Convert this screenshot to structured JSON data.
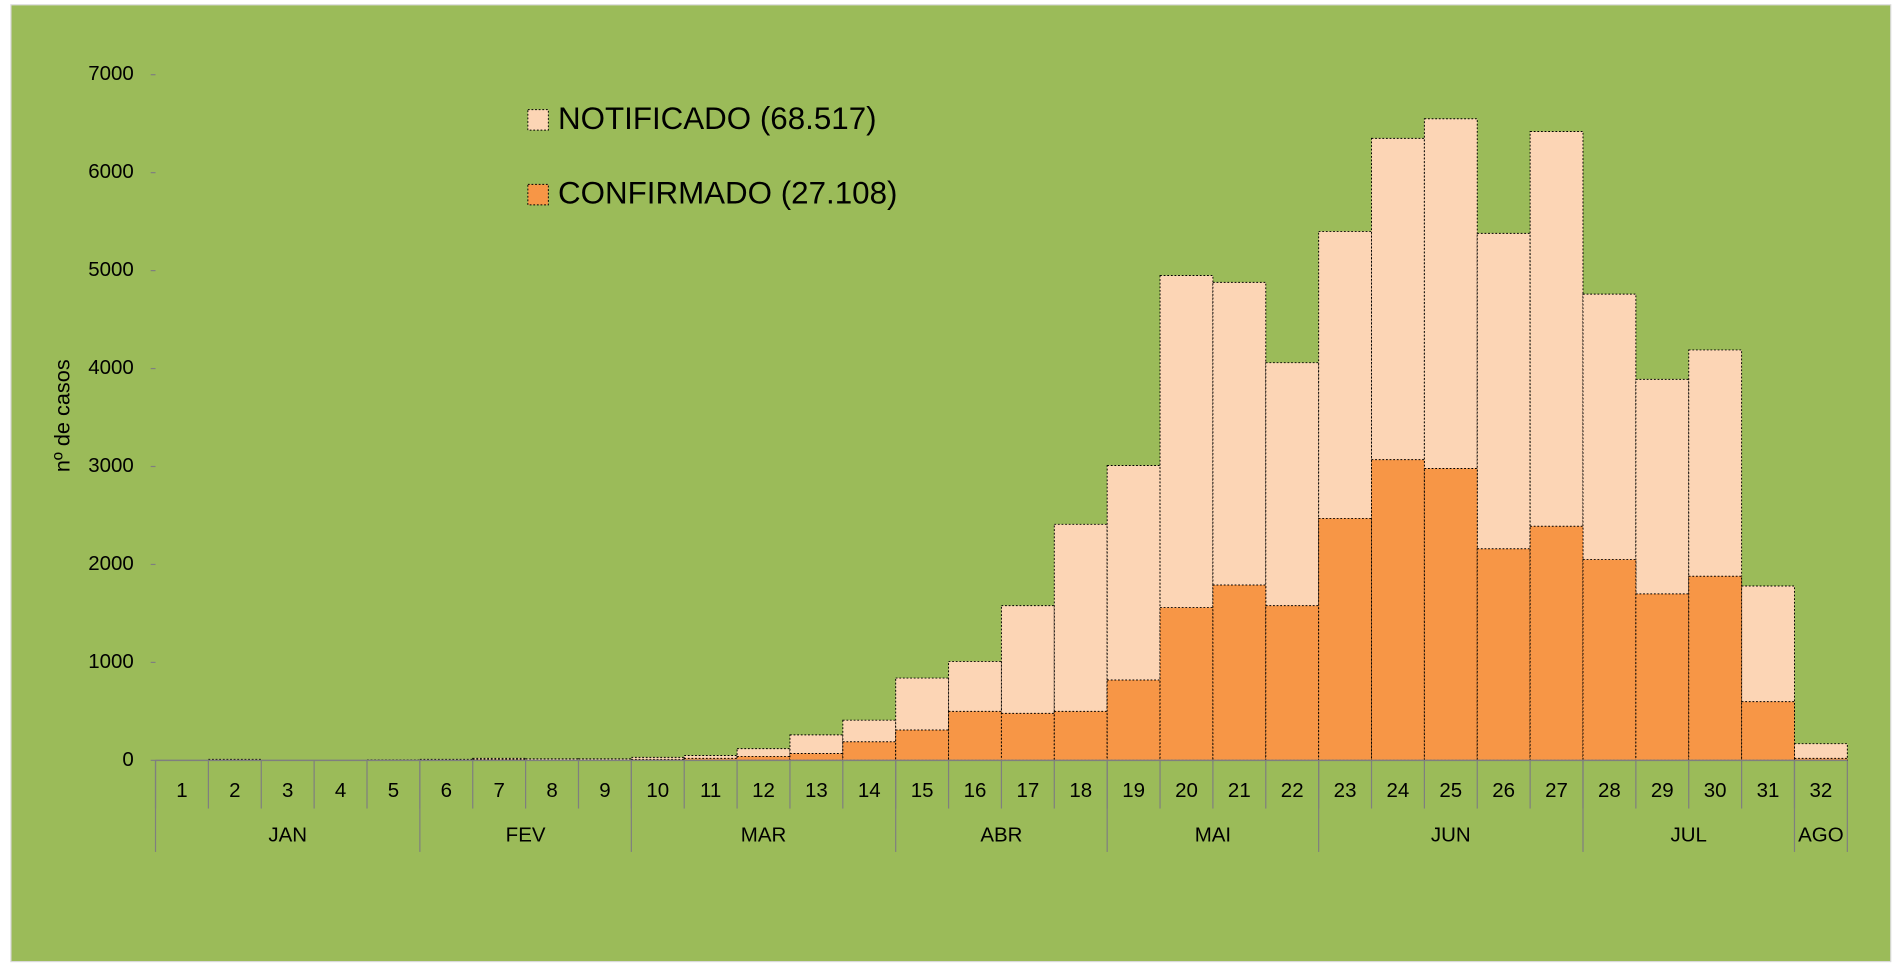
{
  "chart_data": {
    "type": "bar",
    "overlap": true,
    "y_label": "nº de casos",
    "categories": [
      "1",
      "2",
      "3",
      "4",
      "5",
      "6",
      "7",
      "8",
      "9",
      "10",
      "11",
      "12",
      "13",
      "14",
      "15",
      "16",
      "17",
      "18",
      "19",
      "20",
      "21",
      "22",
      "23",
      "24",
      "25",
      "26",
      "27",
      "28",
      "29",
      "30",
      "31",
      "32"
    ],
    "groups": [
      {
        "label": "JAN",
        "span": 5
      },
      {
        "label": "FEV",
        "span": 4
      },
      {
        "label": "MAR",
        "span": 5
      },
      {
        "label": "ABR",
        "span": 4
      },
      {
        "label": "MAI",
        "span": 4
      },
      {
        "label": "JUN",
        "span": 5
      },
      {
        "label": "JUL",
        "span": 4
      },
      {
        "label": "AGO",
        "span": 1
      }
    ],
    "series": [
      {
        "name": "NOTIFICADO (68.517)",
        "color": "#fcd5b5",
        "values": [
          0,
          10,
          0,
          0,
          5,
          10,
          20,
          15,
          15,
          30,
          50,
          120,
          260,
          410,
          840,
          1010,
          1580,
          2410,
          3010,
          4950,
          4880,
          4060,
          5400,
          6350,
          6550,
          5380,
          6420,
          4760,
          3890,
          4190,
          1780,
          170
        ]
      },
      {
        "name": "CONFIRMADO (27.108)",
        "color": "#f79646",
        "values": [
          0,
          5,
          0,
          0,
          0,
          0,
          10,
          0,
          0,
          10,
          20,
          40,
          70,
          190,
          310,
          500,
          480,
          500,
          820,
          1560,
          1790,
          1580,
          2470,
          3070,
          2980,
          2160,
          2390,
          2050,
          1700,
          1880,
          600,
          20
        ]
      }
    ],
    "ylim": [
      0,
      7000
    ],
    "yticks": [
      0,
      1000,
      2000,
      3000,
      4000,
      5000,
      6000,
      7000
    ],
    "background": "#9bbb59"
  }
}
